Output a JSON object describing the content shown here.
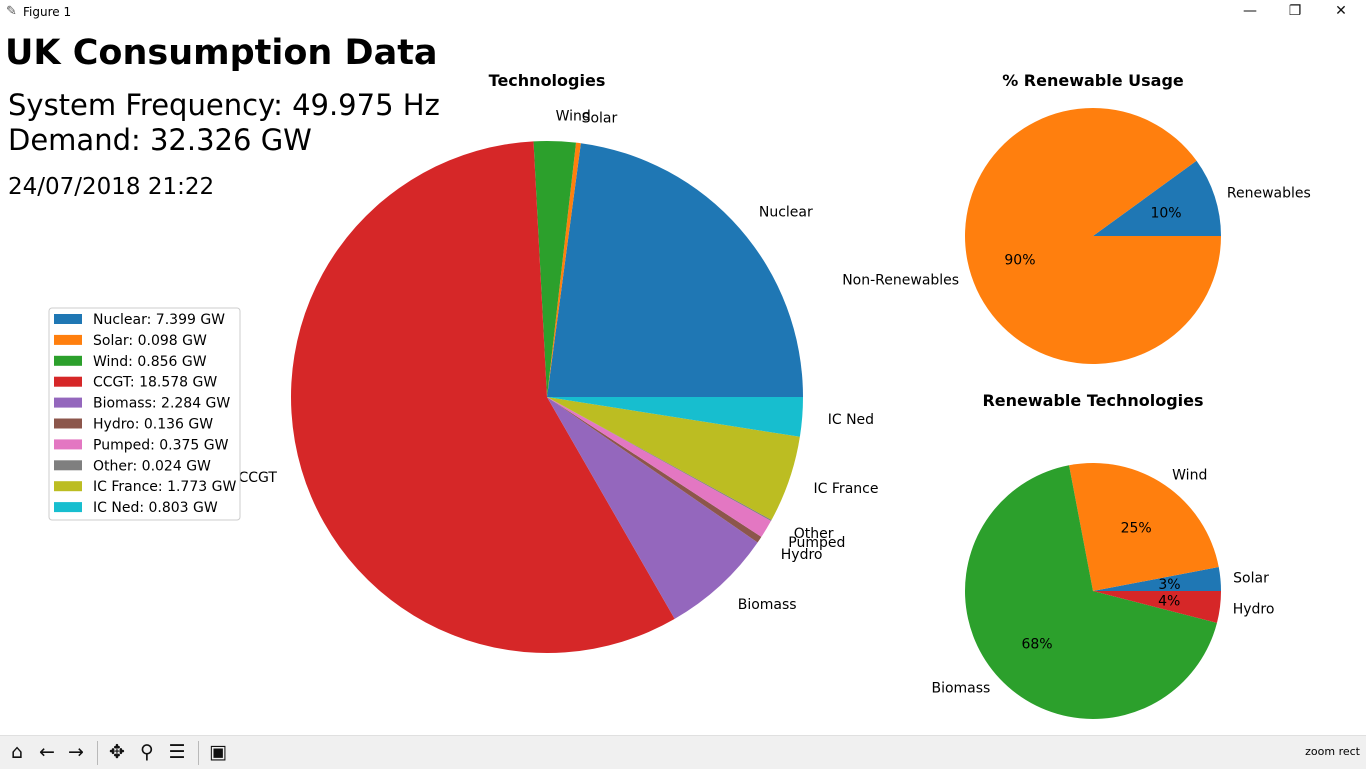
{
  "window": {
    "title": "Figure 1",
    "app_icon": "feather-icon",
    "minimize_icon": "minimize-icon",
    "restore_icon": "restore-icon",
    "close_icon": "close-icon"
  },
  "figure": {
    "heading": "UK Consumption Data",
    "frequency_label": "System Frequency:",
    "frequency_value": "49.975",
    "frequency_unit": "Hz",
    "demand_label": "Demand:",
    "demand_value": "32.326",
    "demand_unit": "GW",
    "timestamp": "24/07/2018 21:22"
  },
  "chart_data": [
    {
      "type": "pie",
      "title": "Technologies",
      "labels": [
        "Nuclear",
        "Solar",
        "Wind",
        "CCGT",
        "Biomass",
        "Hydro",
        "Pumped",
        "Other",
        "IC France",
        "IC Ned"
      ],
      "values": [
        7.399,
        0.098,
        0.856,
        18.578,
        2.284,
        0.136,
        0.375,
        0.024,
        1.773,
        0.803
      ],
      "unit": "GW",
      "colors": [
        "#1f77b4",
        "#ff7f0e",
        "#2ca02c",
        "#d62728",
        "#9467bd",
        "#8c564b",
        "#e377c2",
        "#7f7f7f",
        "#bcbd22",
        "#17becf"
      ],
      "start_angle_deg": 0,
      "direction": "counterclockwise",
      "legend": {
        "placement": "left",
        "entries": [
          "Nuclear: 7.399 GW",
          "Solar: 0.098 GW",
          "Wind: 0.856 GW",
          "CCGT: 18.578 GW",
          "Biomass: 2.284 GW",
          "Hydro: 0.136 GW",
          "Pumped: 0.375 GW",
          "Other: 0.024 GW",
          "IC France: 1.773 GW",
          "IC Ned: 0.803 GW"
        ]
      }
    },
    {
      "type": "pie",
      "title": "% Renewable Usage",
      "labels": [
        "Renewables",
        "Non-Renewables"
      ],
      "values": [
        10,
        90
      ],
      "pct_labels": [
        "10%",
        "90%"
      ],
      "colors": [
        "#1f77b4",
        "#ff7f0e"
      ],
      "start_angle_deg": 0,
      "direction": "counterclockwise"
    },
    {
      "type": "pie",
      "title": "Renewable Technologies",
      "labels": [
        "Solar",
        "Wind",
        "Biomass",
        "Hydro"
      ],
      "values": [
        3,
        25,
        68,
        4
      ],
      "pct_labels": [
        "3%",
        "25%",
        "68%",
        "4%"
      ],
      "colors": [
        "#1f77b4",
        "#ff7f0e",
        "#2ca02c",
        "#d62728"
      ],
      "start_angle_deg": 0,
      "direction": "counterclockwise"
    }
  ],
  "toolbar": {
    "buttons": [
      {
        "name": "home-button",
        "icon": "home-icon"
      },
      {
        "name": "back-button",
        "icon": "arrow-left-icon"
      },
      {
        "name": "forward-button",
        "icon": "arrow-right-icon"
      },
      {
        "name": "pan-button",
        "icon": "move-icon"
      },
      {
        "name": "zoom-button",
        "icon": "magnifier-icon"
      },
      {
        "name": "subplots-button",
        "icon": "sliders-icon"
      },
      {
        "name": "save-button",
        "icon": "floppy-disk-icon"
      }
    ],
    "message": "zoom rect"
  }
}
